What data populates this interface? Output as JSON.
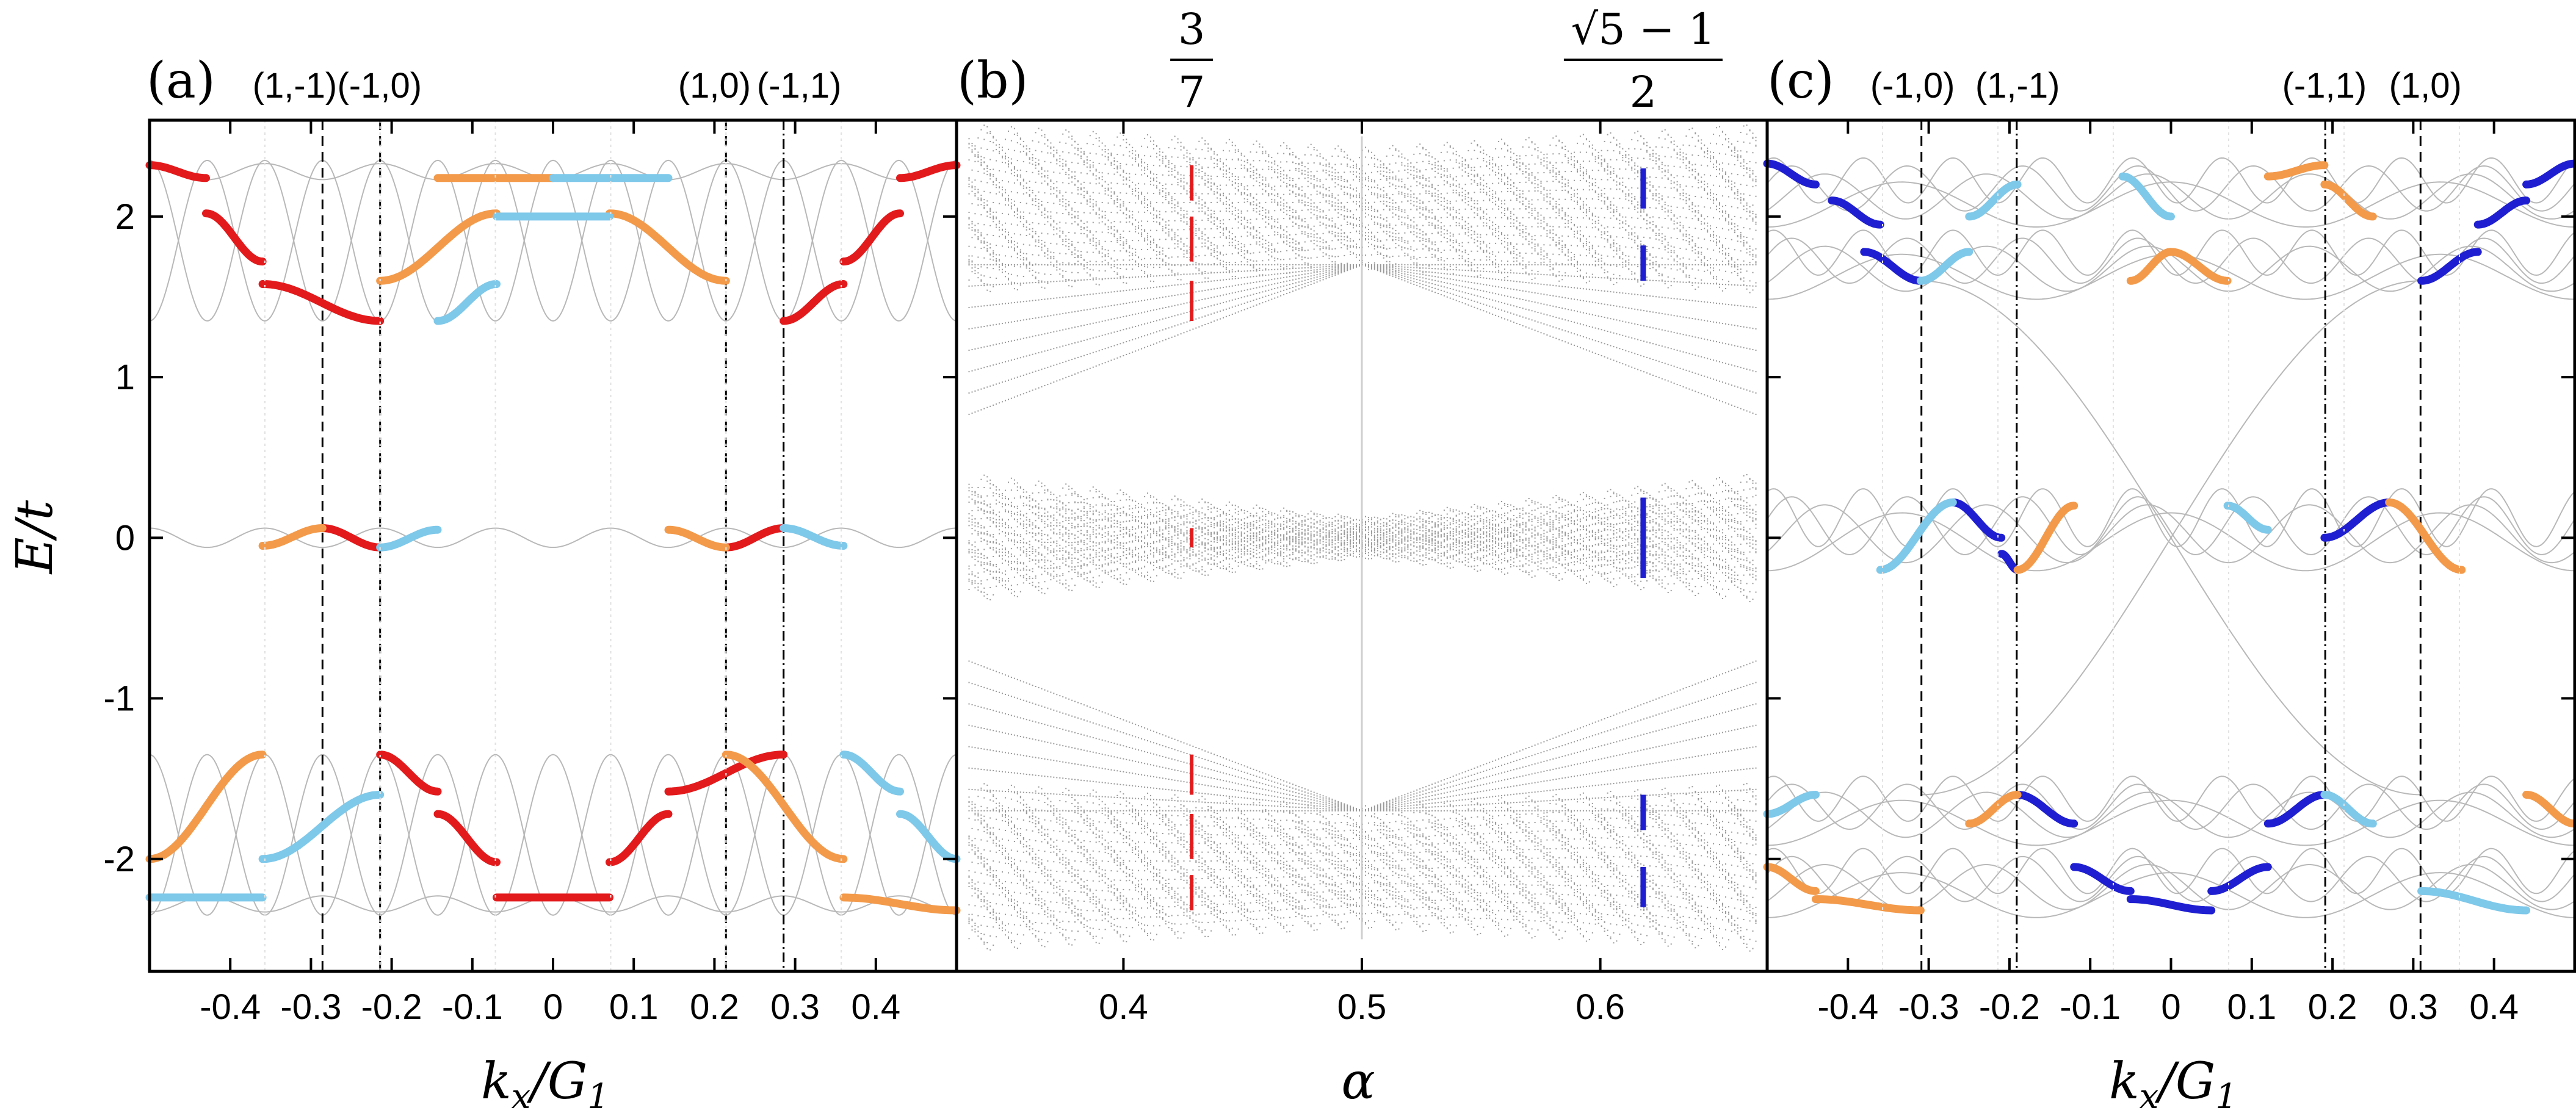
{
  "figure": {
    "panels": [
      {
        "id": "a",
        "label": "(a)",
        "xlabel": "k_x/G_1",
        "ylabel": "E/t",
        "xlim": [
          -0.5,
          0.5
        ],
        "ylim": [
          -2.7,
          2.6
        ],
        "xticks": [
          -0.4,
          -0.3,
          -0.2,
          -0.1,
          0,
          0.1,
          0.2,
          0.3,
          0.4
        ],
        "xticklabels": [
          "-0.4",
          "-0.3",
          "-0.2",
          "-0.1",
          "0",
          "0.1",
          "0.2",
          "0.3",
          "0.4"
        ],
        "yticks": [
          -2,
          -1,
          0,
          1,
          2
        ],
        "yticklabels": [
          "-2",
          "-1",
          "0",
          "1",
          "2"
        ],
        "top_labels": [
          {
            "x": -0.32,
            "text": "(1,-1)"
          },
          {
            "x": -0.215,
            "text": "(-1,0)"
          },
          {
            "x": 0.2,
            "text": "(1,0)"
          },
          {
            "x": 0.305,
            "text": "(-1,1)"
          }
        ],
        "dashed_lines": [
          -0.2857,
          -0.2143,
          0.2143
        ],
        "dashdot_lines": [
          0.2857
        ]
      },
      {
        "id": "b",
        "label": "(b)",
        "xlabel": "α",
        "xlim": [
          0.33,
          0.67
        ],
        "ylim": [
          -2.7,
          2.6
        ],
        "xticks": [
          0.4,
          0.5,
          0.6
        ],
        "xticklabels": [
          "0.4",
          "0.5",
          "0.6"
        ],
        "top_labels": [
          {
            "x": 0.4286,
            "num": "3",
            "den": "7"
          },
          {
            "x": 0.618,
            "num": "√5 − 1",
            "den": "2"
          }
        ],
        "marks": [
          {
            "alpha": 0.4286,
            "color": "#e31a1c"
          },
          {
            "alpha": 0.618,
            "color": "#1f1fd1"
          }
        ]
      },
      {
        "id": "c",
        "label": "(c)",
        "xlabel": "k_x/G_1",
        "xlim": [
          -0.5,
          0.5
        ],
        "ylim": [
          -2.7,
          2.6
        ],
        "xticks": [
          -0.4,
          -0.3,
          -0.2,
          -0.1,
          0,
          0.1,
          0.2,
          0.3,
          0.4
        ],
        "xticklabels": [
          "-0.4",
          "-0.3",
          "-0.2",
          "-0.1",
          "0",
          "0.1",
          "0.2",
          "0.3",
          "0.4"
        ],
        "top_labels": [
          {
            "x": -0.32,
            "text": "(-1,0)"
          },
          {
            "x": -0.19,
            "text": "(1,-1)"
          },
          {
            "x": 0.19,
            "text": "(-1,1)"
          },
          {
            "x": 0.315,
            "text": "(1,0)"
          }
        ],
        "dashed_lines": [
          -0.309,
          0.309
        ],
        "dashdot_lines": [
          -0.191,
          0.191
        ]
      }
    ]
  },
  "chart_data": [
    {
      "type": "line",
      "panel": "a",
      "title": "",
      "xlabel": "k_x/G_1",
      "ylabel": "E/t",
      "xlim": [
        -0.5,
        0.5
      ],
      "ylim": [
        -2.7,
        2.6
      ],
      "grid": false,
      "bands_gray": "seven cosine-like bands in three groups (upper near 1.35–2.35, middle near 0 ±0.06, lower near -1.35 to -2.35), period 1/7 in k_x",
      "series": [
        {
          "color": "#e31a1c",
          "x": [
            -0.5,
            -0.43
          ],
          "y": [
            2.32,
            2.24
          ]
        },
        {
          "color": "#e31a1c",
          "x": [
            -0.43,
            -0.36
          ],
          "y": [
            2.02,
            1.72
          ]
        },
        {
          "color": "#e31a1c",
          "x": [
            -0.36,
            -0.2143
          ],
          "y": [
            1.58,
            1.35
          ]
        },
        {
          "color": "#e31a1c",
          "x": [
            -0.2857,
            -0.2143
          ],
          "y": [
            0.06,
            -0.06
          ]
        },
        {
          "color": "#e31a1c",
          "x": [
            -0.2143,
            -0.143
          ],
          "y": [
            -1.35,
            -1.58
          ]
        },
        {
          "color": "#e31a1c",
          "x": [
            -0.143,
            -0.07
          ],
          "y": [
            -1.72,
            -2.02
          ]
        },
        {
          "color": "#e31a1c",
          "x": [
            -0.07,
            0.07
          ],
          "y": [
            -2.24,
            -2.24
          ]
        },
        {
          "color": "#e31a1c",
          "x": [
            0.07,
            0.143
          ],
          "y": [
            -2.02,
            -1.72
          ]
        },
        {
          "color": "#e31a1c",
          "x": [
            0.143,
            0.2857
          ],
          "y": [
            -1.58,
            -1.35
          ]
        },
        {
          "color": "#e31a1c",
          "x": [
            0.2143,
            0.2857
          ],
          "y": [
            -0.06,
            0.06
          ]
        },
        {
          "color": "#e31a1c",
          "x": [
            0.2857,
            0.36
          ],
          "y": [
            1.35,
            1.58
          ]
        },
        {
          "color": "#e31a1c",
          "x": [
            0.36,
            0.43
          ],
          "y": [
            1.72,
            2.02
          ]
        },
        {
          "color": "#e31a1c",
          "x": [
            0.43,
            0.5
          ],
          "y": [
            2.24,
            2.32
          ]
        },
        {
          "color": "#f39a4a",
          "x": [
            -0.36,
            -0.2857
          ],
          "y": [
            -0.05,
            0.06
          ]
        },
        {
          "color": "#f39a4a",
          "x": [
            -0.5,
            -0.36
          ],
          "y": [
            -2.0,
            -1.35
          ]
        },
        {
          "color": "#f39a4a",
          "x": [
            -0.143,
            0.0
          ],
          "y": [
            2.24,
            2.24
          ]
        },
        {
          "color": "#f39a4a",
          "x": [
            -0.2143,
            -0.07
          ],
          "y": [
            1.6,
            2.02
          ]
        },
        {
          "color": "#f39a4a",
          "x": [
            0.07,
            0.2143
          ],
          "y": [
            2.02,
            1.6
          ]
        },
        {
          "color": "#f39a4a",
          "x": [
            0.143,
            0.2143
          ],
          "y": [
            0.05,
            -0.06
          ]
        },
        {
          "color": "#f39a4a",
          "x": [
            0.2143,
            0.36
          ],
          "y": [
            -1.35,
            -2.0
          ]
        },
        {
          "color": "#f39a4a",
          "x": [
            0.36,
            0.5
          ],
          "y": [
            -2.24,
            -2.32
          ]
        },
        {
          "color": "#7ec8ea",
          "x": [
            -0.2143,
            -0.143
          ],
          "y": [
            -0.06,
            0.05
          ]
        },
        {
          "color": "#7ec8ea",
          "x": [
            -0.143,
            -0.07
          ],
          "y": [
            1.35,
            1.58
          ]
        },
        {
          "color": "#7ec8ea",
          "x": [
            -0.07,
            0.07
          ],
          "y": [
            2.0,
            2.0
          ]
        },
        {
          "color": "#7ec8ea",
          "x": [
            0.0,
            0.143
          ],
          "y": [
            2.24,
            2.24
          ]
        },
        {
          "color": "#7ec8ea",
          "x": [
            0.2857,
            0.36
          ],
          "y": [
            0.06,
            -0.05
          ]
        },
        {
          "color": "#7ec8ea",
          "x": [
            -0.5,
            -0.36
          ],
          "y": [
            -2.24,
            -2.24
          ]
        },
        {
          "color": "#7ec8ea",
          "x": [
            -0.36,
            -0.2143
          ],
          "y": [
            -2.0,
            -1.6
          ]
        },
        {
          "color": "#7ec8ea",
          "x": [
            0.36,
            0.43
          ],
          "y": [
            -1.35,
            -1.58
          ]
        },
        {
          "color": "#7ec8ea",
          "x": [
            0.43,
            0.5
          ],
          "y": [
            -1.72,
            -2.0
          ]
        }
      ]
    },
    {
      "type": "scatter",
      "panel": "b",
      "title": "",
      "xlabel": "α",
      "ylabel": "",
      "xlim": [
        0.33,
        0.67
      ],
      "ylim": [
        -2.7,
        2.6
      ],
      "grid": false,
      "description": "Hofstadter-butterfly-like spectrum E/t versus α (gray dots); highlighted spectra at α = 3/7 (red) and α = (√5−1)/2 (blue)",
      "series": [
        {
          "name": "",
          "color": "#e31a1c",
          "alpha": 0.4286,
          "band_ranges": [
            [
              2.1,
              2.32
            ],
            [
              1.72,
              2.0
            ],
            [
              1.35,
              1.6
            ],
            [
              -0.06,
              0.06
            ],
            [
              -1.6,
              -1.35
            ],
            [
              -2.0,
              -1.72
            ],
            [
              -2.32,
              -2.1
            ]
          ]
        },
        {
          "name": "",
          "color": "#1f1fd1",
          "alpha": 0.618,
          "band_ranges": [
            [
              2.05,
              2.3
            ],
            [
              1.6,
              1.82
            ],
            [
              -0.25,
              0.25
            ],
            [
              -1.82,
              -1.6
            ],
            [
              -2.3,
              -2.05
            ]
          ]
        }
      ]
    },
    {
      "type": "line",
      "panel": "c",
      "title": "",
      "xlabel": "k_x/G_1",
      "ylabel": "",
      "xlim": [
        -0.5,
        0.5
      ],
      "ylim": [
        -2.7,
        2.6
      ],
      "grid": false,
      "bands_gray": "many overlapping cosine-like bands in three groups (upper near 1.6–2.35, middle near ±0.25, lower near -1.6 to -2.35)",
      "series": [
        {
          "color": "#1f1fd1",
          "x": [
            -0.5,
            -0.44
          ],
          "y": [
            2.33,
            2.2
          ]
        },
        {
          "color": "#1f1fd1",
          "x": [
            -0.42,
            -0.36
          ],
          "y": [
            2.1,
            1.95
          ]
        },
        {
          "color": "#1f1fd1",
          "x": [
            -0.38,
            -0.31
          ],
          "y": [
            1.78,
            1.6
          ]
        },
        {
          "color": "#1f1fd1",
          "x": [
            -0.27,
            -0.21
          ],
          "y": [
            0.22,
            0.0
          ]
        },
        {
          "color": "#1f1fd1",
          "x": [
            -0.21,
            -0.19
          ],
          "y": [
            -0.1,
            -0.2
          ]
        },
        {
          "color": "#1f1fd1",
          "x": [
            -0.19,
            -0.12
          ],
          "y": [
            -1.6,
            -1.78
          ]
        },
        {
          "color": "#1f1fd1",
          "x": [
            -0.12,
            -0.05
          ],
          "y": [
            -2.05,
            -2.2
          ]
        },
        {
          "color": "#1f1fd1",
          "x": [
            -0.05,
            0.05
          ],
          "y": [
            -2.25,
            -2.32
          ]
        },
        {
          "color": "#1f1fd1",
          "x": [
            0.05,
            0.12
          ],
          "y": [
            -2.2,
            -2.05
          ]
        },
        {
          "color": "#1f1fd1",
          "x": [
            0.12,
            0.19
          ],
          "y": [
            -1.78,
            -1.6
          ]
        },
        {
          "color": "#1f1fd1",
          "x": [
            0.19,
            0.27
          ],
          "y": [
            0.0,
            0.22
          ]
        },
        {
          "color": "#1f1fd1",
          "x": [
            0.31,
            0.38
          ],
          "y": [
            1.6,
            1.78
          ]
        },
        {
          "color": "#1f1fd1",
          "x": [
            0.38,
            0.44
          ],
          "y": [
            1.95,
            2.1
          ]
        },
        {
          "color": "#1f1fd1",
          "x": [
            0.44,
            0.5
          ],
          "y": [
            2.2,
            2.33
          ]
        },
        {
          "color": "#7ec8ea",
          "x": [
            -0.31,
            -0.25
          ],
          "y": [
            1.6,
            1.78
          ]
        },
        {
          "color": "#7ec8ea",
          "x": [
            -0.25,
            -0.19
          ],
          "y": [
            2.0,
            2.2
          ]
        },
        {
          "color": "#7ec8ea",
          "x": [
            -0.06,
            0.0
          ],
          "y": [
            2.25,
            2.0
          ]
        },
        {
          "color": "#7ec8ea",
          "x": [
            -0.36,
            -0.27
          ],
          "y": [
            -0.2,
            0.22
          ]
        },
        {
          "color": "#7ec8ea",
          "x": [
            0.07,
            0.12
          ],
          "y": [
            0.2,
            0.05
          ]
        },
        {
          "color": "#7ec8ea",
          "x": [
            -0.5,
            -0.44
          ],
          "y": [
            -1.72,
            -1.6
          ]
        },
        {
          "color": "#7ec8ea",
          "x": [
            0.19,
            0.25
          ],
          "y": [
            -1.6,
            -1.78
          ]
        },
        {
          "color": "#7ec8ea",
          "x": [
            0.31,
            0.44
          ],
          "y": [
            -2.2,
            -2.32
          ]
        },
        {
          "color": "#f39a4a",
          "x": [
            -0.05,
            0.0
          ],
          "y": [
            1.6,
            1.78
          ]
        },
        {
          "color": "#f39a4a",
          "x": [
            0.12,
            0.19
          ],
          "y": [
            2.25,
            2.32
          ]
        },
        {
          "color": "#f39a4a",
          "x": [
            0.19,
            0.25
          ],
          "y": [
            2.2,
            2.0
          ]
        },
        {
          "color": "#f39a4a",
          "x": [
            0.0,
            0.07
          ],
          "y": [
            1.78,
            1.6
          ]
        },
        {
          "color": "#f39a4a",
          "x": [
            -0.19,
            -0.12
          ],
          "y": [
            -0.2,
            0.2
          ]
        },
        {
          "color": "#f39a4a",
          "x": [
            0.27,
            0.36
          ],
          "y": [
            0.22,
            -0.2
          ]
        },
        {
          "color": "#f39a4a",
          "x": [
            -0.5,
            -0.44
          ],
          "y": [
            -2.05,
            -2.2
          ]
        },
        {
          "color": "#f39a4a",
          "x": [
            -0.44,
            -0.31
          ],
          "y": [
            -2.25,
            -2.32
          ]
        },
        {
          "color": "#f39a4a",
          "x": [
            -0.25,
            -0.19
          ],
          "y": [
            -1.78,
            -1.6
          ]
        },
        {
          "color": "#f39a4a",
          "x": [
            0.44,
            0.5
          ],
          "y": [
            -1.6,
            -1.78
          ]
        }
      ]
    }
  ]
}
